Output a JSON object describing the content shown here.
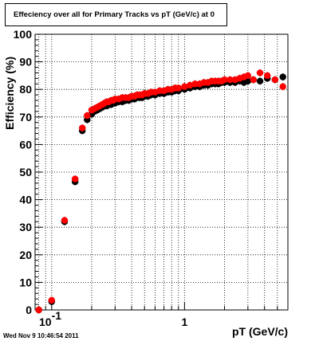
{
  "canvas": {
    "title": "Effeciency over all for Primary Tracks vs pT (GeV/c) at 0",
    "footer": "Wed Nov  9 10:46:54 2011"
  },
  "chart_data": {
    "type": "scatter",
    "title": "Effeciency over all for Primary Tracks vs pT (GeV/c) at 0",
    "xlabel": "pT (GeV/c)",
    "ylabel": "Efficiency (%)",
    "xscale": "log",
    "xlim": [
      0.075,
      6.0
    ],
    "ylim": [
      0,
      100
    ],
    "grid": true,
    "x_tick_labels": [
      {
        "value": 0.1,
        "base": "10",
        "exp": "-1"
      },
      {
        "value": 1,
        "base": "1",
        "exp": ""
      }
    ],
    "y_ticks": [
      0,
      10,
      20,
      30,
      40,
      50,
      60,
      70,
      80,
      90,
      100
    ],
    "series": [
      {
        "color": "#000000",
        "points": [
          [
            0.08,
            0
          ],
          [
            0.1,
            3
          ],
          [
            0.125,
            32
          ],
          [
            0.15,
            46.5
          ],
          [
            0.17,
            65
          ],
          [
            0.185,
            69
          ],
          [
            0.2,
            71
          ],
          [
            0.21,
            72
          ],
          [
            0.22,
            72.5
          ],
          [
            0.23,
            73
          ],
          [
            0.24,
            73.5
          ],
          [
            0.25,
            74
          ],
          [
            0.26,
            74
          ],
          [
            0.27,
            74.5
          ],
          [
            0.28,
            74.5
          ],
          [
            0.29,
            75
          ],
          [
            0.3,
            75
          ],
          [
            0.32,
            75.5
          ],
          [
            0.34,
            75.5
          ],
          [
            0.36,
            76
          ],
          [
            0.38,
            76
          ],
          [
            0.4,
            76.5
          ],
          [
            0.42,
            76.5
          ],
          [
            0.44,
            77
          ],
          [
            0.46,
            77
          ],
          [
            0.48,
            77
          ],
          [
            0.5,
            77.5
          ],
          [
            0.53,
            77.5
          ],
          [
            0.56,
            78
          ],
          [
            0.6,
            78
          ],
          [
            0.65,
            78.5
          ],
          [
            0.7,
            78.5
          ],
          [
            0.75,
            79
          ],
          [
            0.8,
            79
          ],
          [
            0.85,
            79.5
          ],
          [
            0.9,
            79.5
          ],
          [
            1.0,
            80
          ],
          [
            1.1,
            80.5
          ],
          [
            1.2,
            81
          ],
          [
            1.3,
            81
          ],
          [
            1.4,
            81.5
          ],
          [
            1.5,
            81.5
          ],
          [
            1.6,
            82
          ],
          [
            1.7,
            82
          ],
          [
            1.8,
            82
          ],
          [
            1.9,
            82.5
          ],
          [
            2.0,
            82.5
          ],
          [
            2.2,
            82.5
          ],
          [
            2.4,
            82.5
          ],
          [
            2.6,
            83
          ],
          [
            2.8,
            82.5
          ],
          [
            3.0,
            83
          ],
          [
            3.3,
            83.5
          ],
          [
            3.7,
            83
          ],
          [
            4.2,
            84
          ],
          [
            4.8,
            83.5
          ],
          [
            5.5,
            84.5
          ]
        ]
      },
      {
        "color": "#ff0000",
        "points": [
          [
            0.08,
            0
          ],
          [
            0.1,
            3.5
          ],
          [
            0.125,
            32.5
          ],
          [
            0.15,
            47.5
          ],
          [
            0.17,
            66
          ],
          [
            0.185,
            70.5
          ],
          [
            0.2,
            72.5
          ],
          [
            0.21,
            73
          ],
          [
            0.22,
            73.5
          ],
          [
            0.23,
            74
          ],
          [
            0.24,
            74.5
          ],
          [
            0.25,
            75
          ],
          [
            0.26,
            75.5
          ],
          [
            0.27,
            75.5
          ],
          [
            0.28,
            76
          ],
          [
            0.29,
            76
          ],
          [
            0.3,
            76.5
          ],
          [
            0.32,
            76.5
          ],
          [
            0.34,
            77
          ],
          [
            0.36,
            77
          ],
          [
            0.38,
            77
          ],
          [
            0.4,
            77.5
          ],
          [
            0.42,
            77.5
          ],
          [
            0.44,
            78
          ],
          [
            0.46,
            78
          ],
          [
            0.48,
            78
          ],
          [
            0.5,
            78.5
          ],
          [
            0.53,
            78.5
          ],
          [
            0.56,
            79
          ],
          [
            0.6,
            79
          ],
          [
            0.65,
            79.5
          ],
          [
            0.7,
            79.5
          ],
          [
            0.75,
            80
          ],
          [
            0.8,
            80
          ],
          [
            0.85,
            80.5
          ],
          [
            0.9,
            80.5
          ],
          [
            1.0,
            81
          ],
          [
            1.1,
            81.5
          ],
          [
            1.2,
            82
          ],
          [
            1.3,
            82
          ],
          [
            1.4,
            82.5
          ],
          [
            1.5,
            82.5
          ],
          [
            1.6,
            83
          ],
          [
            1.7,
            83
          ],
          [
            1.8,
            83
          ],
          [
            1.9,
            83
          ],
          [
            2.0,
            83.5
          ],
          [
            2.2,
            83.5
          ],
          [
            2.4,
            83.5
          ],
          [
            2.6,
            84
          ],
          [
            2.8,
            84.5
          ],
          [
            3.0,
            85
          ],
          [
            3.3,
            83.5
          ],
          [
            3.7,
            86
          ],
          [
            4.2,
            85
          ],
          [
            4.8,
            83.5
          ],
          [
            5.5,
            81
          ]
        ]
      }
    ]
  }
}
